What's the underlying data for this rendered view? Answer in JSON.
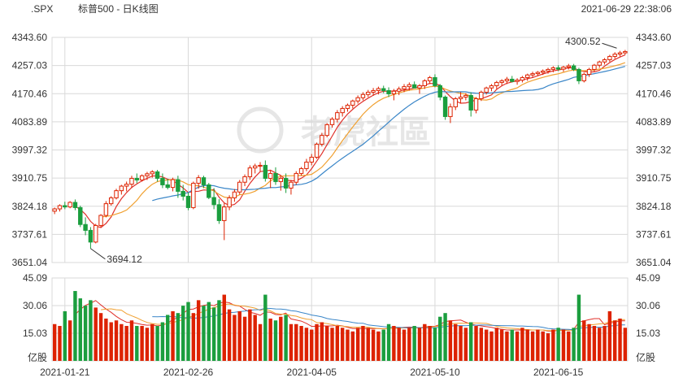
{
  "header": {
    "symbol": ".SPX",
    "title": "标普500 - 日K线图",
    "datetime": "2021-06-29 22:38:06"
  },
  "watermark": {
    "text": "老虎社區"
  },
  "colors": {
    "up": "#dd2200",
    "down": "#1b9e3e",
    "ma5": "#e0312b",
    "ma10": "#f0a030",
    "ma20": "#3a86c8",
    "grid": "#d9d9d9"
  },
  "chart_data": {
    "type": "candlestick",
    "price_axis": {
      "ticks": [
        "4343.60",
        "4257.03",
        "4170.46",
        "4083.89",
        "3997.32",
        "3910.75",
        "3824.18",
        "3737.61",
        "3651.04"
      ],
      "range": [
        3651.04,
        4343.6
      ]
    },
    "volume_axis": {
      "ticks": [
        "45.09",
        "30.06",
        "15.03"
      ],
      "unit": "亿股",
      "range": [
        0,
        45.09
      ]
    },
    "x_labels": [
      {
        "label": "2021-01-21",
        "index": 2
      },
      {
        "label": "2021-02-26",
        "index": 26
      },
      {
        "label": "2021-04-05",
        "index": 50
      },
      {
        "label": "2021-05-10",
        "index": 74
      },
      {
        "label": "2021-06-15",
        "index": 98
      }
    ],
    "annotations": {
      "low": {
        "value": "3694.12",
        "index": 7
      },
      "high": {
        "value": "4300.52",
        "index": 110
      }
    },
    "candles": [
      [
        3809,
        3820,
        3800,
        3816,
        20
      ],
      [
        3816,
        3830,
        3808,
        3826,
        19
      ],
      [
        3826,
        3838,
        3815,
        3822,
        27
      ],
      [
        3822,
        3840,
        3818,
        3836,
        22
      ],
      [
        3836,
        3845,
        3812,
        3820,
        38
      ],
      [
        3820,
        3826,
        3760,
        3768,
        34
      ],
      [
        3768,
        3790,
        3735,
        3750,
        30
      ],
      [
        3750,
        3760,
        3694,
        3714,
        33
      ],
      [
        3714,
        3770,
        3710,
        3765,
        29
      ],
      [
        3765,
        3800,
        3760,
        3796,
        26
      ],
      [
        3796,
        3840,
        3790,
        3832,
        23
      ],
      [
        3832,
        3855,
        3826,
        3850,
        21
      ],
      [
        3850,
        3878,
        3845,
        3872,
        22
      ],
      [
        3872,
        3890,
        3860,
        3886,
        20
      ],
      [
        3886,
        3900,
        3870,
        3892,
        19
      ],
      [
        3892,
        3918,
        3880,
        3910,
        22
      ],
      [
        3910,
        3925,
        3895,
        3905,
        19
      ],
      [
        3905,
        3922,
        3900,
        3918,
        19
      ],
      [
        3918,
        3930,
        3905,
        3924,
        18
      ],
      [
        3924,
        3935,
        3912,
        3930,
        20
      ],
      [
        3930,
        3936,
        3900,
        3910,
        19
      ],
      [
        3910,
        3925,
        3880,
        3890,
        21
      ],
      [
        3890,
        3908,
        3876,
        3882,
        25
      ],
      [
        3882,
        3912,
        3870,
        3906,
        27
      ],
      [
        3906,
        3918,
        3850,
        3870,
        26
      ],
      [
        3870,
        3890,
        3842,
        3855,
        30
      ],
      [
        3855,
        3866,
        3812,
        3820,
        32
      ],
      [
        3820,
        3900,
        3815,
        3895,
        26
      ],
      [
        3895,
        3920,
        3878,
        3912,
        33
      ],
      [
        3912,
        3918,
        3880,
        3890,
        30
      ],
      [
        3890,
        3896,
        3846,
        3851,
        32
      ],
      [
        3851,
        3880,
        3815,
        3829,
        29
      ],
      [
        3829,
        3846,
        3770,
        3780,
        33
      ],
      [
        3780,
        3834,
        3720,
        3822,
        36
      ],
      [
        3822,
        3858,
        3812,
        3850,
        28
      ],
      [
        3850,
        3877,
        3838,
        3868,
        25
      ],
      [
        3868,
        3905,
        3860,
        3898,
        27
      ],
      [
        3898,
        3922,
        3886,
        3915,
        24
      ],
      [
        3915,
        3950,
        3905,
        3942,
        28
      ],
      [
        3942,
        3955,
        3925,
        3948,
        25
      ],
      [
        3948,
        3960,
        3930,
        3950,
        20
      ],
      [
        3950,
        3965,
        3900,
        3910,
        36
      ],
      [
        3910,
        3935,
        3880,
        3925,
        23
      ],
      [
        3925,
        3944,
        3890,
        3900,
        22
      ],
      [
        3900,
        3918,
        3872,
        3910,
        24
      ],
      [
        3910,
        3925,
        3865,
        3880,
        25
      ],
      [
        3880,
        3905,
        3860,
        3898,
        20
      ],
      [
        3898,
        3932,
        3890,
        3925,
        20
      ],
      [
        3925,
        3945,
        3918,
        3940,
        19
      ],
      [
        3940,
        3970,
        3932,
        3960,
        18
      ],
      [
        3960,
        3985,
        3950,
        3975,
        17
      ],
      [
        3975,
        4020,
        3970,
        4015,
        20
      ],
      [
        4015,
        4050,
        4008,
        4042,
        21
      ],
      [
        4042,
        4080,
        4036,
        4075,
        19
      ],
      [
        4075,
        4098,
        4066,
        4092,
        18
      ],
      [
        4092,
        4120,
        4082,
        4112,
        19
      ],
      [
        4112,
        4132,
        4100,
        4125,
        18
      ],
      [
        4125,
        4140,
        4115,
        4135,
        17
      ],
      [
        4135,
        4152,
        4125,
        4148,
        16
      ],
      [
        4148,
        4165,
        4140,
        4158,
        18
      ],
      [
        4158,
        4175,
        4150,
        4168,
        19
      ],
      [
        4168,
        4182,
        4160,
        4175,
        18
      ],
      [
        4175,
        4188,
        4164,
        4180,
        17
      ],
      [
        4180,
        4192,
        4168,
        4186,
        16
      ],
      [
        4186,
        4195,
        4172,
        4180,
        17
      ],
      [
        4180,
        4190,
        4160,
        4170,
        20
      ],
      [
        4170,
        4185,
        4150,
        4178,
        19
      ],
      [
        4178,
        4192,
        4166,
        4185,
        18
      ],
      [
        4185,
        4200,
        4175,
        4192,
        17
      ],
      [
        4192,
        4205,
        4180,
        4198,
        18
      ],
      [
        4198,
        4208,
        4190,
        4188,
        19
      ],
      [
        4188,
        4200,
        4170,
        4195,
        18
      ],
      [
        4195,
        4215,
        4185,
        4210,
        20
      ],
      [
        4210,
        4225,
        4200,
        4220,
        19
      ],
      [
        4220,
        4230,
        4190,
        4195,
        18
      ],
      [
        4195,
        4200,
        4150,
        4160,
        24
      ],
      [
        4160,
        4165,
        4090,
        4100,
        26
      ],
      [
        4100,
        4140,
        4080,
        4130,
        22
      ],
      [
        4130,
        4160,
        4120,
        4155,
        20
      ],
      [
        4155,
        4175,
        4140,
        4160,
        19
      ],
      [
        4160,
        4172,
        4150,
        4165,
        18
      ],
      [
        4165,
        4175,
        4100,
        4120,
        21
      ],
      [
        4120,
        4160,
        4110,
        4155,
        19
      ],
      [
        4155,
        4180,
        4148,
        4175,
        18
      ],
      [
        4175,
        4192,
        4168,
        4188,
        17
      ],
      [
        4188,
        4200,
        4178,
        4195,
        16
      ],
      [
        4195,
        4210,
        4185,
        4205,
        18
      ],
      [
        4205,
        4215,
        4195,
        4210,
        17
      ],
      [
        4210,
        4222,
        4200,
        4215,
        16
      ],
      [
        4215,
        4225,
        4205,
        4208,
        17
      ],
      [
        4208,
        4218,
        4198,
        4212,
        16
      ],
      [
        4212,
        4225,
        4205,
        4220,
        18
      ],
      [
        4220,
        4232,
        4210,
        4228,
        17
      ],
      [
        4228,
        4238,
        4220,
        4232,
        16
      ],
      [
        4232,
        4240,
        4225,
        4236,
        17
      ],
      [
        4236,
        4245,
        4228,
        4240,
        16
      ],
      [
        4240,
        4250,
        4232,
        4245,
        15
      ],
      [
        4245,
        4255,
        4236,
        4250,
        17
      ],
      [
        4250,
        4258,
        4240,
        4246,
        18
      ],
      [
        4246,
        4256,
        4238,
        4252,
        17
      ],
      [
        4252,
        4262,
        4245,
        4256,
        16
      ],
      [
        4256,
        4262,
        4240,
        4245,
        18
      ],
      [
        4245,
        4250,
        4200,
        4210,
        36
      ],
      [
        4210,
        4235,
        4205,
        4230,
        22
      ],
      [
        4230,
        4250,
        4222,
        4245,
        20
      ],
      [
        4245,
        4262,
        4238,
        4258,
        19
      ],
      [
        4258,
        4272,
        4250,
        4268,
        18
      ],
      [
        4268,
        4280,
        4260,
        4275,
        19
      ],
      [
        4275,
        4290,
        4268,
        4285,
        27
      ],
      [
        4285,
        4298,
        4278,
        4292,
        22
      ],
      [
        4292,
        4302,
        4285,
        4296,
        23
      ],
      [
        4296,
        4305,
        4290,
        4300,
        18
      ]
    ]
  }
}
